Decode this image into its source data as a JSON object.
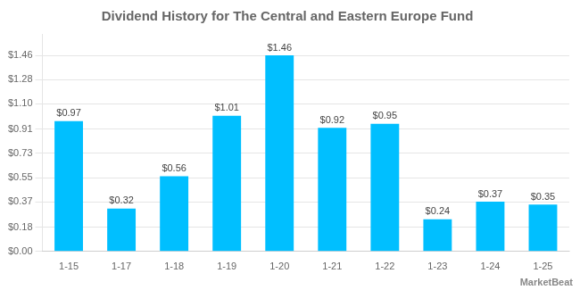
{
  "chart_data": {
    "type": "bar",
    "title": "Dividend History for The Central and Eastern Europe Fund",
    "categories": [
      "1-15",
      "1-17",
      "1-18",
      "1-19",
      "1-20",
      "1-21",
      "1-22",
      "1-23",
      "1-24",
      "1-25"
    ],
    "values": [
      0.97,
      0.32,
      0.56,
      1.01,
      1.46,
      0.92,
      0.95,
      0.24,
      0.37,
      0.35
    ],
    "value_labels": [
      "$0.97",
      "$0.32",
      "$0.56",
      "$1.01",
      "$1.46",
      "$0.92",
      "$0.95",
      "$0.24",
      "$0.37",
      "$0.35"
    ],
    "data_labels": true,
    "color": "#00bfff",
    "ylim": [
      0,
      1.62
    ],
    "yticks": [
      {
        "value": 0.0,
        "label": "$0.00"
      },
      {
        "value": 0.18,
        "label": "$0.18"
      },
      {
        "value": 0.37,
        "label": "$0.37"
      },
      {
        "value": 0.55,
        "label": "$0.55"
      },
      {
        "value": 0.73,
        "label": "$0.73"
      },
      {
        "value": 0.91,
        "label": "$0.91"
      },
      {
        "value": 1.1,
        "label": "$1.10"
      },
      {
        "value": 1.28,
        "label": "$1.28"
      },
      {
        "value": 1.46,
        "label": "$1.46"
      }
    ],
    "grid": true,
    "annotations": [
      "MarketBeat"
    ]
  }
}
